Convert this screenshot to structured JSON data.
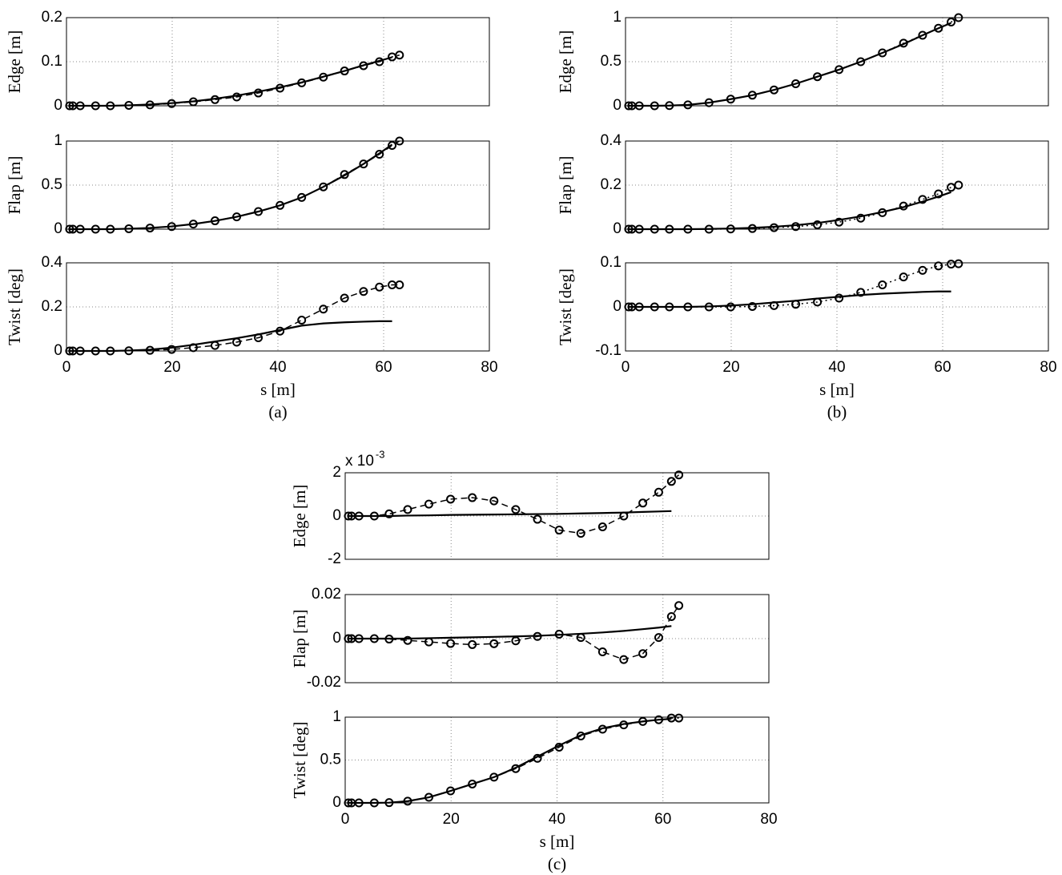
{
  "chart_data": [
    {
      "type": "line",
      "ylabel": "Edge [m]",
      "xlim": [
        0,
        80
      ],
      "xticks": [
        0,
        20,
        40,
        60,
        80
      ],
      "xtick_labels": false,
      "ylim": [
        0,
        0.2
      ],
      "yticks": [
        0,
        0.1,
        0.2
      ],
      "grid": true,
      "x": [
        0.6,
        1.2,
        2.6,
        5.5,
        8.3,
        11.8,
        15.8,
        19.9,
        24.0,
        28.1,
        32.2,
        36.3,
        40.4,
        44.5,
        48.6,
        52.6,
        56.2,
        59.2,
        61.6,
        63.0
      ],
      "series": [
        {
          "color": "#000000",
          "linestyle": "solid",
          "values": [
            0,
            0,
            0,
            0,
            0,
            0.001,
            0.003,
            0.006,
            0.01,
            0.016,
            0.023,
            0.032,
            0.042,
            0.053,
            0.066,
            0.079,
            0.092,
            0.102,
            0.11,
            null
          ]
        },
        {
          "color": "#000000",
          "linestyle": "dashed",
          "marker": "o",
          "values": [
            0,
            0,
            0,
            0,
            0,
            0.001,
            0.002,
            0.005,
            0.009,
            0.014,
            0.02,
            0.029,
            0.04,
            0.052,
            0.065,
            0.079,
            0.091,
            0.1,
            0.111,
            0.115
          ]
        }
      ]
    },
    {
      "type": "line",
      "ylabel": "Flap [m]",
      "xlim": [
        0,
        80
      ],
      "xticks": [
        0,
        20,
        40,
        60,
        80
      ],
      "xtick_labels": false,
      "ylim": [
        0,
        1
      ],
      "yticks": [
        0,
        0.5,
        1
      ],
      "grid": true,
      "x": [
        0.6,
        1.2,
        2.6,
        5.5,
        8.3,
        11.8,
        15.8,
        19.9,
        24.0,
        28.1,
        32.2,
        36.3,
        40.4,
        44.5,
        48.6,
        52.6,
        56.2,
        59.2,
        61.6,
        63.0
      ],
      "series": [
        {
          "color": "#000000",
          "linestyle": "solid",
          "values": [
            0,
            0,
            0,
            0,
            0,
            0.005,
            0.014,
            0.031,
            0.058,
            0.094,
            0.14,
            0.2,
            0.27,
            0.36,
            0.48,
            0.61,
            0.74,
            0.86,
            0.96,
            null
          ]
        },
        {
          "color": "#000000",
          "linestyle": "dashed",
          "marker": "o",
          "values": [
            0,
            0,
            0,
            0,
            0,
            0.005,
            0.013,
            0.03,
            0.058,
            0.095,
            0.14,
            0.2,
            0.27,
            0.36,
            0.48,
            0.62,
            0.74,
            0.85,
            0.95,
            1.0
          ]
        }
      ]
    },
    {
      "type": "line",
      "ylabel": "Twist [deg]",
      "xlabel": "s [m]",
      "caption": "(a)",
      "xlim": [
        0,
        80
      ],
      "xticks": [
        0,
        20,
        40,
        60,
        80
      ],
      "xtick_labels": true,
      "ylim": [
        0,
        0.4
      ],
      "yticks": [
        0,
        0.2,
        0.4
      ],
      "grid": true,
      "x": [
        0.6,
        1.2,
        2.6,
        5.5,
        8.3,
        11.8,
        15.8,
        19.9,
        24.0,
        28.1,
        32.2,
        36.3,
        40.4,
        44.5,
        48.6,
        52.6,
        56.2,
        59.2,
        61.6,
        63.0
      ],
      "series": [
        {
          "color": "#000000",
          "linestyle": "solid",
          "values": [
            0,
            0,
            0,
            0,
            0,
            0.002,
            0.006,
            0.015,
            0.028,
            0.043,
            0.058,
            0.075,
            0.095,
            0.115,
            0.125,
            0.13,
            0.133,
            0.135,
            0.135,
            null
          ]
        },
        {
          "color": "#000000",
          "linestyle": "dashed",
          "marker": "o",
          "values": [
            0,
            0,
            0,
            0,
            0,
            0.001,
            0.003,
            0.007,
            0.015,
            0.025,
            0.04,
            0.06,
            0.09,
            0.14,
            0.19,
            0.24,
            0.27,
            0.29,
            0.3,
            0.3
          ]
        }
      ]
    },
    {
      "type": "line",
      "ylabel": "Edge [m]",
      "xlim": [
        0,
        80
      ],
      "xticks": [
        0,
        20,
        40,
        60,
        80
      ],
      "xtick_labels": false,
      "ylim": [
        0,
        1
      ],
      "yticks": [
        0,
        0.5,
        1
      ],
      "grid": true,
      "x": [
        0.6,
        1.2,
        2.6,
        5.5,
        8.3,
        11.8,
        15.8,
        19.9,
        24.0,
        28.1,
        32.2,
        36.3,
        40.4,
        44.5,
        48.6,
        52.6,
        56.2,
        59.2,
        61.6,
        63.0
      ],
      "series": [
        {
          "color": "#000000",
          "linestyle": "solid",
          "values": [
            0,
            0,
            0,
            0,
            0.002,
            0.01,
            0.035,
            0.075,
            0.12,
            0.18,
            0.25,
            0.33,
            0.41,
            0.5,
            0.6,
            0.7,
            0.8,
            0.88,
            0.94,
            null
          ]
        },
        {
          "color": "#000000",
          "linestyle": "dotted",
          "marker": "o",
          "values": [
            0,
            0,
            0,
            0,
            0.002,
            0.01,
            0.035,
            0.075,
            0.12,
            0.18,
            0.25,
            0.33,
            0.41,
            0.5,
            0.6,
            0.71,
            0.8,
            0.88,
            0.95,
            1.0
          ]
        }
      ]
    },
    {
      "type": "line",
      "ylabel": "Flap [m]",
      "xlim": [
        0,
        80
      ],
      "xticks": [
        0,
        20,
        40,
        60,
        80
      ],
      "xtick_labels": false,
      "ylim": [
        0,
        0.4
      ],
      "yticks": [
        0,
        0.2,
        0.4
      ],
      "grid": true,
      "x": [
        0.6,
        1.2,
        2.6,
        5.5,
        8.3,
        11.8,
        15.8,
        19.9,
        24.0,
        28.1,
        32.2,
        36.3,
        40.4,
        44.5,
        48.6,
        52.6,
        56.2,
        59.2,
        61.6,
        63.0
      ],
      "series": [
        {
          "color": "#000000",
          "linestyle": "solid",
          "values": [
            0,
            0,
            0,
            0,
            0,
            0,
            0.001,
            0.003,
            0.006,
            0.011,
            0.018,
            0.028,
            0.042,
            0.058,
            0.078,
            0.1,
            0.125,
            0.148,
            0.168,
            null
          ]
        },
        {
          "color": "#000000",
          "linestyle": "dotted",
          "marker": "o",
          "values": [
            0,
            0,
            0,
            0,
            0,
            0,
            0,
            0.001,
            0.003,
            0.007,
            0.012,
            0.02,
            0.032,
            0.05,
            0.075,
            0.105,
            0.135,
            0.16,
            0.19,
            0.2
          ]
        }
      ]
    },
    {
      "type": "line",
      "ylabel": "Twist [deg]",
      "xlabel": "s [m]",
      "caption": "(b)",
      "xlim": [
        0,
        80
      ],
      "xticks": [
        0,
        20,
        40,
        60,
        80
      ],
      "xtick_labels": true,
      "ylim": [
        -0.1,
        0.1
      ],
      "yticks": [
        -0.1,
        0,
        0.1
      ],
      "grid": true,
      "x": [
        0.6,
        1.2,
        2.6,
        5.5,
        8.3,
        11.8,
        15.8,
        19.9,
        24.0,
        28.1,
        32.2,
        36.3,
        40.4,
        44.5,
        48.6,
        52.6,
        56.2,
        59.2,
        61.6,
        63.0
      ],
      "series": [
        {
          "color": "#000000",
          "linestyle": "solid",
          "values": [
            0,
            0,
            0,
            0,
            0,
            0,
            0.001,
            0.003,
            0.006,
            0.01,
            0.014,
            0.019,
            0.023,
            0.027,
            0.03,
            0.032,
            0.034,
            0.035,
            0.035,
            null
          ]
        },
        {
          "color": "#000000",
          "linestyle": "dotted",
          "marker": "o",
          "values": [
            0,
            0,
            0,
            0,
            0,
            0,
            0,
            0,
            0.001,
            0.003,
            0.006,
            0.011,
            0.02,
            0.033,
            0.05,
            0.068,
            0.083,
            0.093,
            0.097,
            0.098
          ]
        }
      ]
    },
    {
      "type": "line",
      "ylabel": "Edge [m]",
      "y_multiplier": {
        "base": "x 10",
        "exponent": "-3"
      },
      "xlim": [
        0,
        80
      ],
      "xticks": [
        0,
        20,
        40,
        60,
        80
      ],
      "xtick_labels": false,
      "ylim": [
        -0.002,
        0.002
      ],
      "yticks": [
        {
          "value": -0.002,
          "label": "-2"
        },
        {
          "value": 0,
          "label": "0"
        },
        {
          "value": 0.002,
          "label": "2"
        }
      ],
      "grid": true,
      "x": [
        0.6,
        1.2,
        2.6,
        5.5,
        8.3,
        11.8,
        15.8,
        19.9,
        24.0,
        28.1,
        32.2,
        36.3,
        40.4,
        44.5,
        48.6,
        52.6,
        56.2,
        59.2,
        61.6,
        63.0
      ],
      "series": [
        {
          "color": "#000000",
          "linestyle": "solid",
          "values": [
            0,
            0,
            0,
            0,
            0,
            2e-05,
            3e-05,
            5e-05,
            6e-05,
            7e-05,
            8e-05,
            9e-05,
            0.0001,
            0.00012,
            0.00014,
            0.00016,
            0.00019,
            0.00021,
            0.00023,
            null
          ]
        },
        {
          "color": "#000000",
          "linestyle": "dashed",
          "marker": "o",
          "values": [
            0,
            0,
            0,
            0,
            0.0001,
            0.0003,
            0.00055,
            0.00078,
            0.00085,
            0.0007,
            0.0003,
            -0.00015,
            -0.00065,
            -0.0008,
            -0.0005,
            0,
            0.0006,
            0.0011,
            0.0016,
            0.0019
          ]
        }
      ]
    },
    {
      "type": "line",
      "ylabel": "Flap [m]",
      "xlim": [
        0,
        80
      ],
      "xticks": [
        0,
        20,
        40,
        60,
        80
      ],
      "xtick_labels": false,
      "ylim": [
        -0.02,
        0.02
      ],
      "yticks": [
        -0.02,
        0,
        0.02
      ],
      "grid": true,
      "x": [
        0.6,
        1.2,
        2.6,
        5.5,
        8.3,
        11.8,
        15.8,
        19.9,
        24.0,
        28.1,
        32.2,
        36.3,
        40.4,
        44.5,
        48.6,
        52.6,
        56.2,
        59.2,
        61.6,
        63.0
      ],
      "series": [
        {
          "color": "#000000",
          "linestyle": "solid",
          "values": [
            0,
            0,
            0,
            0,
            0,
            0,
            0.0002,
            0.0004,
            0.0006,
            0.0008,
            0.001,
            0.0013,
            0.0017,
            0.0022,
            0.0028,
            0.0035,
            0.0043,
            0.005,
            0.0057,
            null
          ]
        },
        {
          "color": "#000000",
          "linestyle": "dashed",
          "marker": "o",
          "values": [
            0,
            0,
            0,
            0,
            -0.0002,
            -0.0008,
            -0.0015,
            -0.0022,
            -0.0027,
            -0.0023,
            -0.001,
            0.001,
            0.002,
            0.0005,
            -0.006,
            -0.0095,
            -0.0068,
            0.0005,
            0.01,
            0.015
          ]
        }
      ]
    },
    {
      "type": "line",
      "ylabel": "Twist [deg]",
      "xlabel": "s [m]",
      "caption": "(c)",
      "xlim": [
        0,
        80
      ],
      "xticks": [
        0,
        20,
        40,
        60,
        80
      ],
      "xtick_labels": true,
      "ylim": [
        0,
        1
      ],
      "yticks": [
        0,
        0.5,
        1
      ],
      "grid": true,
      "x": [
        0.6,
        1.2,
        2.6,
        5.5,
        8.3,
        11.8,
        15.8,
        19.9,
        24.0,
        28.1,
        32.2,
        36.3,
        40.4,
        44.5,
        48.6,
        52.6,
        56.2,
        59.2,
        61.6,
        63.0
      ],
      "series": [
        {
          "color": "#000000",
          "linestyle": "solid",
          "values": [
            0,
            0,
            0,
            0,
            0.003,
            0.02,
            0.065,
            0.14,
            0.22,
            0.3,
            0.41,
            0.54,
            0.67,
            0.79,
            0.87,
            0.92,
            0.95,
            0.97,
            0.98,
            null
          ]
        },
        {
          "color": "#000000",
          "linestyle": "dashed",
          "marker": "o",
          "values": [
            0,
            0,
            0,
            0,
            0.003,
            0.02,
            0.065,
            0.14,
            0.22,
            0.3,
            0.4,
            0.52,
            0.65,
            0.78,
            0.86,
            0.91,
            0.95,
            0.97,
            0.99,
            0.99
          ]
        }
      ]
    }
  ]
}
